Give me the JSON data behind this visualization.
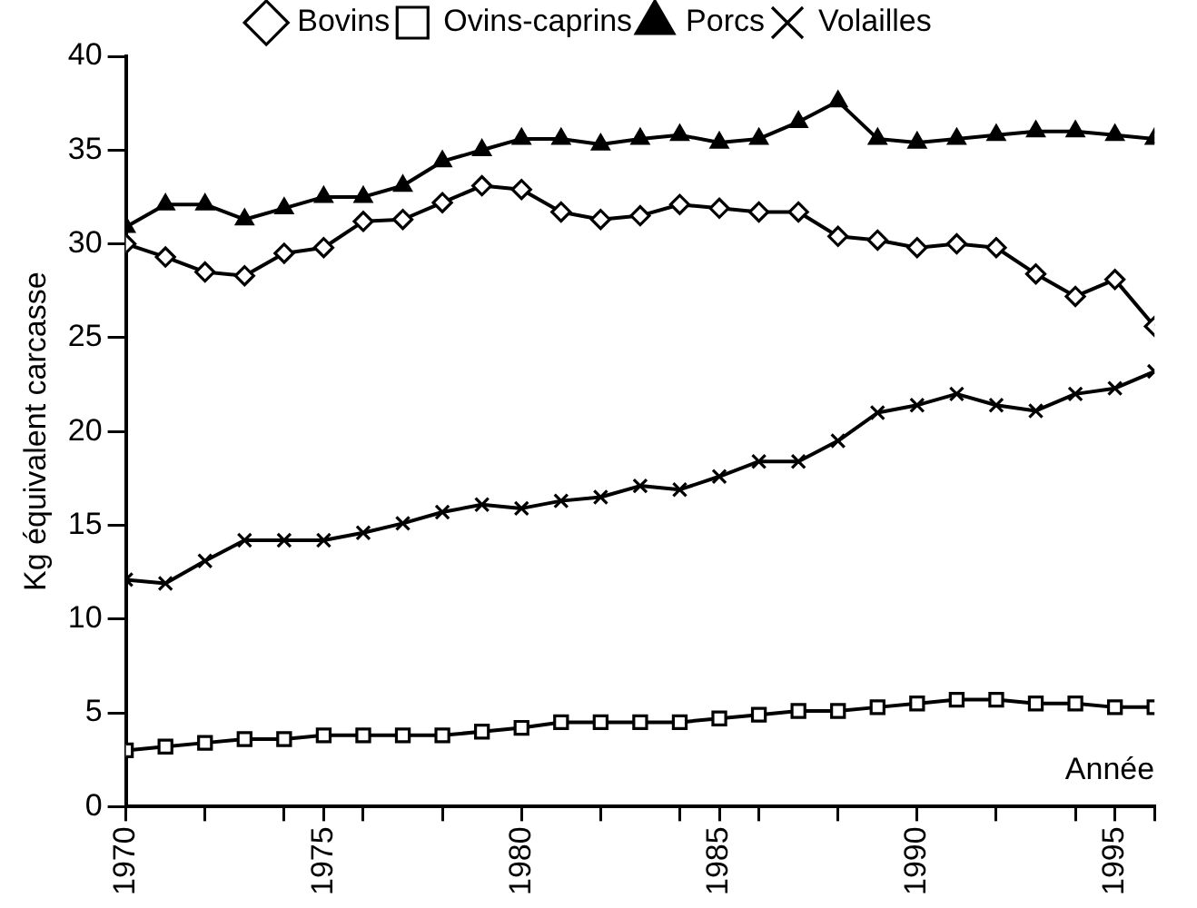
{
  "chart_data": {
    "type": "line",
    "xlabel": "Année",
    "ylabel": "Kg équivalent carcasse",
    "x": [
      1970,
      1971,
      1972,
      1973,
      1974,
      1975,
      1976,
      1977,
      1978,
      1979,
      1980,
      1981,
      1982,
      1983,
      1984,
      1985,
      1986,
      1987,
      1988,
      1989,
      1990,
      1991,
      1992,
      1993,
      1994,
      1995,
      1996
    ],
    "series": [
      {
        "name": "Bovins",
        "color": "#000000",
        "marker": "diamond",
        "values": [
          30,
          29.3,
          28.5,
          28.3,
          29.5,
          29.8,
          31.2,
          31.3,
          32.2,
          33.1,
          32.9,
          31.7,
          31.3,
          31.5,
          32.1,
          31.9,
          31.7,
          31.7,
          30.4,
          30.2,
          29.8,
          30,
          29.8,
          28.4,
          27.2,
          28.1,
          25.6
        ]
      },
      {
        "name": "Ovins-caprins",
        "color": "#000000",
        "marker": "square",
        "values": [
          3.0,
          3.2,
          3.4,
          3.6,
          3.6,
          3.8,
          3.8,
          3.8,
          3.8,
          4.0,
          4.2,
          4.5,
          4.5,
          4.5,
          4.5,
          4.7,
          4.9,
          5.1,
          5.1,
          5.3,
          5.5,
          5.7,
          5.7,
          5.5,
          5.5,
          5.3,
          5.3
        ]
      },
      {
        "name": "Porcs",
        "color": "#000000",
        "marker": "triangle",
        "values": [
          30.9,
          32.1,
          32.1,
          31.3,
          31.9,
          32.5,
          32.5,
          33.1,
          34.4,
          35.0,
          35.6,
          35.6,
          35.3,
          35.6,
          35.8,
          35.4,
          35.6,
          36.5,
          37.6,
          35.6,
          35.4,
          35.6,
          35.8,
          36.0,
          36.0,
          35.8,
          35.6
        ]
      },
      {
        "name": "Volailles",
        "color": "#000000",
        "marker": "cross",
        "values": [
          12.1,
          11.9,
          13.1,
          14.2,
          14.2,
          14.2,
          14.6,
          15.1,
          15.7,
          16.1,
          15.9,
          16.3,
          16.5,
          17.1,
          16.9,
          17.6,
          18.4,
          18.4,
          19.5,
          21.0,
          21.4,
          22.0,
          21.4,
          21.1,
          22.0,
          22.3,
          23.2
        ]
      }
    ],
    "xlim": [
      1970,
      1996
    ],
    "xticks": [
      1970,
      {
        "value": 1972,
        "label": null
      },
      {
        "value": 1974,
        "label": null
      },
      1975,
      {
        "value": 1976,
        "label": null
      },
      {
        "value": 1978,
        "label": null
      },
      1980,
      {
        "value": 1982,
        "label": null
      },
      {
        "value": 1984,
        "label": null
      },
      1985,
      {
        "value": 1986,
        "label": null
      },
      {
        "value": 1988,
        "label": null
      },
      1990,
      {
        "value": 1992,
        "label": null
      },
      {
        "value": 1994,
        "label": null
      },
      1995,
      {
        "value": 1996,
        "label": null
      }
    ],
    "ylim": [
      0,
      40
    ],
    "yticks": [
      0,
      5,
      10,
      15,
      20,
      25,
      30,
      35,
      40
    ],
    "grid": false,
    "legend": "top"
  }
}
